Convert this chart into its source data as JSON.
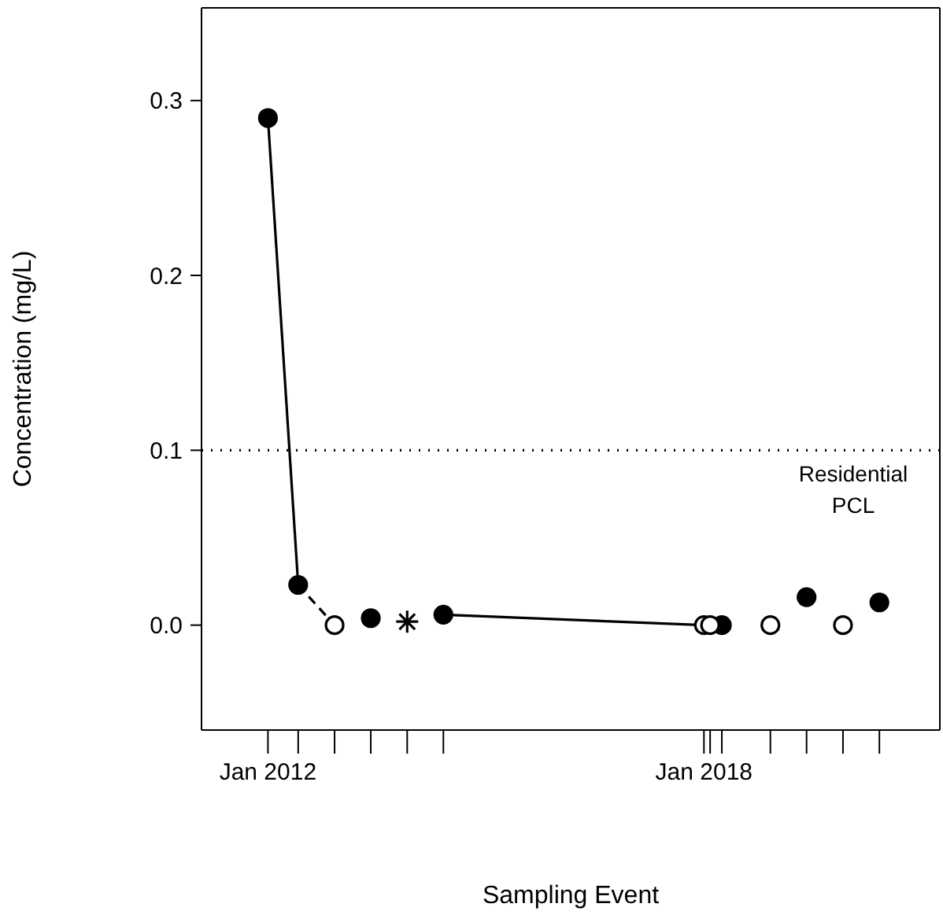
{
  "chart_data": {
    "type": "scatter",
    "xlabel": "Sampling Event",
    "ylabel": "Concentration (mg/L)",
    "xlim": [
      "2011-02",
      "2021-04"
    ],
    "ylim": [
      -0.06,
      0.353
    ],
    "xticks": [
      {
        "value": "2012-01",
        "label": "Jan 2012"
      },
      {
        "value": "2012-06",
        "label": null
      },
      {
        "value": "2012-12",
        "label": null
      },
      {
        "value": "2013-06",
        "label": null
      },
      {
        "value": "2013-12",
        "label": null
      },
      {
        "value": "2014-06",
        "label": null
      },
      {
        "value": "2018-01",
        "label": "Jan 2018"
      },
      {
        "value": "2018-02",
        "label": null
      },
      {
        "value": "2018-04",
        "label": null
      },
      {
        "value": "2018-12",
        "label": null
      },
      {
        "value": "2019-06",
        "label": null
      },
      {
        "value": "2019-12",
        "label": null
      },
      {
        "value": "2020-06",
        "label": null
      }
    ],
    "yticks": [
      {
        "value": 0,
        "label": "0.0"
      },
      {
        "value": 0.1,
        "label": "0.1"
      },
      {
        "value": 0.2,
        "label": "0.2"
      },
      {
        "value": 0.3,
        "label": "0.3"
      }
    ],
    "ref_lines": [
      {
        "axis": "y",
        "value": 0.1,
        "label": "Residential PCL",
        "line_style": "dotted",
        "color": "#000000"
      }
    ],
    "series": [
      {
        "type": "line",
        "color": "#000000",
        "line_style": "solid",
        "marker": "none",
        "x": [
          "2012-01",
          "2012-06"
        ],
        "values": [
          0.29,
          0.023
        ]
      },
      {
        "type": "line",
        "color": "#000000",
        "line_style": "dashed",
        "marker": "none",
        "x": [
          "2012-06",
          "2012-12"
        ],
        "values": [
          0.023,
          0
        ]
      },
      {
        "type": "line",
        "color": "#000000",
        "line_style": "solid",
        "marker": "none",
        "x": [
          "2014-06",
          "2018-01"
        ],
        "values": [
          0.006,
          0
        ]
      },
      {
        "color": "#000000",
        "marker": "circle",
        "x": [
          "2012-01",
          "2012-06",
          "2013-06",
          "2014-06",
          "2018-04",
          "2019-06",
          "2020-06"
        ],
        "values": [
          0.29,
          0.023,
          0.004,
          0.006,
          0,
          0.016,
          0.013
        ]
      },
      {
        "color": "#ffffff",
        "marker": "circle",
        "x": [
          "2012-12",
          "2018-01",
          "2018-02",
          "2018-12",
          "2019-12"
        ],
        "values": [
          0,
          0,
          0,
          0,
          0
        ]
      },
      {
        "color": "#000000",
        "marker": "cross",
        "x": [
          "2013-12"
        ],
        "values": [
          0.002
        ]
      }
    ]
  }
}
